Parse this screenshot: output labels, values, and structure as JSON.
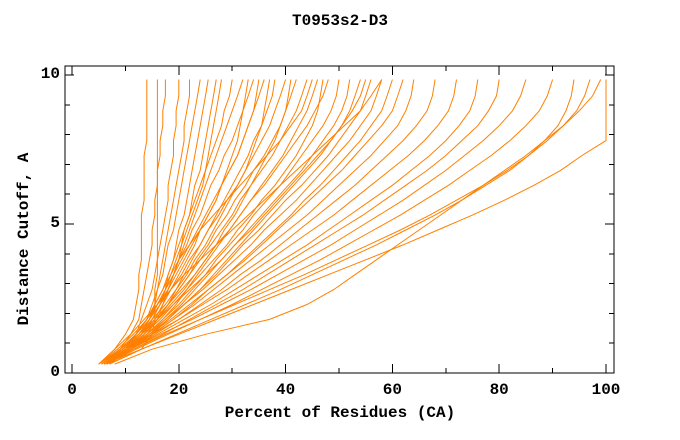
{
  "window": {
    "background": "#ffffff"
  },
  "chart_data": {
    "type": "line",
    "title": "T0953s2-D3",
    "xlabel": "Percent of Residues (CA)",
    "ylabel": "Distance Cutoff, A",
    "xlim": [
      0,
      100
    ],
    "ylim": [
      0,
      10
    ],
    "x_major_ticks": [
      0,
      20,
      40,
      60,
      80,
      100
    ],
    "x_minor_ticks": [
      10,
      30,
      50,
      70,
      90
    ],
    "y_major_ticks": [
      0,
      5,
      10
    ],
    "y_minor_ticks": [
      1,
      2,
      3,
      4,
      6,
      7,
      8,
      9
    ],
    "grid": false,
    "legend": "none",
    "line_color": "#ff8000",
    "axis_color": "#000000",
    "background": "#ffffff",
    "cutoffs": [
      0.3,
      0.8,
      1.3,
      1.8,
      2.3,
      2.8,
      3.3,
      3.8,
      4.3,
      4.8,
      5.3,
      5.8,
      6.3,
      6.8,
      7.3,
      7.8,
      8.3,
      8.8,
      9.3,
      9.85
    ],
    "series_note": "Each series is percent-of-residues (CA) at the shared distance cutoffs; one curve per predicted model (values estimated from plot).",
    "series": [
      [
        6,
        13,
        15,
        15.5,
        15.5,
        15.5,
        16,
        16,
        16,
        16,
        16,
        16,
        16,
        16,
        16,
        16,
        16,
        16,
        16,
        16
      ],
      [
        5,
        8,
        10,
        11.5,
        12,
        12.5,
        12.5,
        13,
        13,
        13,
        13,
        13.5,
        13.5,
        13.5,
        13.5,
        14,
        14,
        14,
        14,
        14
      ],
      [
        5.5,
        9,
        11,
        12.5,
        13,
        13.5,
        14,
        14.5,
        15,
        15,
        15.5,
        15.5,
        16,
        16,
        16.5,
        16.5,
        17,
        17,
        17.5,
        17.5
      ],
      [
        6,
        10,
        12,
        13,
        14,
        15,
        15.5,
        16,
        16.5,
        17,
        17.5,
        18,
        18,
        18.5,
        19,
        19,
        19.5,
        19.5,
        20,
        20
      ],
      [
        6.5,
        10,
        13,
        14.5,
        15.5,
        16,
        16.5,
        17,
        17.5,
        18,
        18.5,
        19,
        19.5,
        20,
        20.5,
        21,
        21,
        21.5,
        22,
        22
      ],
      [
        5.5,
        9,
        12,
        14,
        15,
        16,
        17,
        17.5,
        18,
        19,
        19.5,
        20,
        20.5,
        21,
        21.5,
        22,
        22.5,
        23,
        23.5,
        24
      ],
      [
        6,
        10.5,
        13.5,
        15,
        16.5,
        17.5,
        18,
        19,
        19.5,
        20,
        21,
        21.5,
        22,
        22.5,
        23,
        23.5,
        24,
        24.5,
        25,
        25.5
      ],
      [
        7,
        11,
        14,
        16,
        17,
        18,
        19,
        20,
        20.5,
        21,
        22,
        22.5,
        23,
        24,
        24.5,
        25,
        25.5,
        26,
        26.5,
        27
      ],
      [
        5.5,
        9.5,
        12.5,
        14.5,
        16,
        17.5,
        18.5,
        19.5,
        20.5,
        21.5,
        22.5,
        23.5,
        24.5,
        25,
        25.5,
        26,
        26.5,
        27,
        27.5,
        28
      ],
      [
        5,
        9,
        12,
        14,
        15.5,
        17,
        18,
        19,
        20,
        21,
        22,
        23,
        24,
        25,
        26,
        27,
        28,
        28.5,
        29.5,
        30
      ],
      [
        6,
        10,
        13,
        15,
        16.5,
        18,
        19,
        20,
        21,
        22,
        23,
        24,
        25,
        26,
        27,
        28,
        29,
        30,
        31,
        32
      ],
      [
        6,
        9.5,
        12,
        14,
        16,
        18,
        19.5,
        21,
        22.5,
        24,
        25.5,
        27,
        28,
        29,
        30,
        31,
        31.5,
        32,
        32.5,
        33
      ],
      [
        5.5,
        9.5,
        12.5,
        14.5,
        16,
        17.5,
        19,
        20,
        21.5,
        22.5,
        24,
        25,
        26,
        27.5,
        28.5,
        30,
        31,
        32,
        33,
        34
      ],
      [
        5,
        8.5,
        11.5,
        14,
        16,
        17.5,
        19,
        20.5,
        22,
        23.5,
        25,
        26.5,
        28,
        29.5,
        31,
        32,
        33,
        34,
        34.5,
        35
      ],
      [
        6,
        10,
        13,
        15.5,
        17,
        18.5,
        20,
        21.5,
        23,
        24,
        25.5,
        27,
        28,
        29.5,
        31,
        32,
        33,
        34,
        35,
        36
      ],
      [
        5.5,
        9,
        12.5,
        15,
        17.5,
        19.5,
        21.5,
        23,
        25,
        26.5,
        28,
        29.5,
        31,
        32.5,
        33.5,
        34.5,
        35.5,
        36,
        36.5,
        37
      ],
      [
        6.5,
        10.5,
        13.5,
        16,
        18,
        19.5,
        21,
        22.5,
        24,
        25.5,
        27,
        28.5,
        30,
        31.5,
        33,
        34,
        35.5,
        36.5,
        37.5,
        38
      ],
      [
        5.5,
        9,
        12,
        14.5,
        16.5,
        18.5,
        20.5,
        22,
        24,
        25.5,
        27.5,
        29,
        31,
        32.5,
        34,
        35.5,
        37,
        38,
        39,
        40
      ],
      [
        6,
        10,
        13,
        16,
        18.5,
        21,
        23,
        25,
        27,
        28.5,
        30.5,
        32,
        33.5,
        35,
        36.5,
        38,
        39,
        40,
        40.5,
        41
      ],
      [
        6,
        10,
        13.5,
        16,
        18,
        20,
        22,
        23.5,
        25.5,
        27,
        29,
        30.5,
        32.5,
        34,
        36,
        37.5,
        39,
        40,
        41,
        42
      ],
      [
        6,
        9.5,
        13,
        15.5,
        18,
        20,
        22,
        24,
        26,
        28,
        30,
        31.5,
        33.5,
        35.5,
        37.5,
        39,
        40.5,
        42,
        43,
        44
      ],
      [
        5.5,
        9,
        12,
        14,
        15.5,
        17,
        18.5,
        20,
        22,
        24,
        26.5,
        29,
        31.5,
        34,
        36.5,
        39,
        41,
        43,
        44,
        45
      ],
      [
        6.5,
        10.5,
        14,
        17,
        19.5,
        21.5,
        23.5,
        25.5,
        27.5,
        29.5,
        31.5,
        33.5,
        35.5,
        37.5,
        39.5,
        41,
        42.5,
        44,
        45,
        46
      ],
      [
        6.5,
        10,
        13.5,
        16.5,
        19,
        21.5,
        24,
        26.5,
        29,
        31,
        33.5,
        35.5,
        38,
        40,
        42,
        43.5,
        45,
        46,
        46.5,
        47
      ],
      [
        5.5,
        9,
        12.5,
        15.5,
        18,
        20.5,
        23,
        25,
        27,
        29.5,
        31.5,
        33.5,
        36,
        38,
        40,
        42,
        44,
        45.5,
        47,
        48
      ],
      [
        6,
        10,
        14,
        17,
        20,
        22.5,
        25,
        27,
        29.5,
        32,
        34,
        36.5,
        39,
        41,
        43,
        45,
        47,
        48.5,
        49.5,
        50
      ],
      [
        6,
        10.5,
        14.5,
        17.5,
        20.5,
        23,
        25.5,
        28,
        30.5,
        33,
        35.5,
        38,
        40.5,
        43,
        45,
        47,
        49,
        50.5,
        51.5,
        52
      ],
      [
        7,
        11,
        15,
        18,
        21,
        24,
        26.5,
        29,
        31.5,
        34,
        36.5,
        39,
        41.5,
        44,
        46.5,
        48.5,
        50.5,
        52,
        53,
        54
      ],
      [
        6,
        9.5,
        13,
        16,
        19,
        22,
        25,
        28,
        30.5,
        33.5,
        36,
        38.5,
        41,
        43.5,
        46,
        48.5,
        50.5,
        52.5,
        54,
        55
      ],
      [
        6.5,
        10.5,
        14.5,
        18,
        21,
        24,
        27,
        29.5,
        32,
        35,
        37.5,
        40,
        43,
        45.5,
        48,
        50,
        52,
        54,
        55,
        56
      ],
      [
        6,
        10,
        14,
        17.5,
        21,
        24.5,
        27.5,
        30.5,
        33.5,
        36,
        39,
        42,
        44.5,
        47,
        49.5,
        52,
        54,
        56,
        57,
        58
      ],
      [
        5,
        8,
        11,
        13.5,
        16,
        18.5,
        21,
        24,
        27,
        30,
        33,
        36,
        39,
        42,
        45,
        48,
        51,
        54,
        56,
        58
      ],
      [
        6.5,
        11,
        15,
        19,
        22.5,
        25.5,
        29,
        32,
        35,
        38,
        41,
        43.5,
        46.5,
        49,
        51.5,
        54,
        56,
        58,
        59,
        60
      ],
      [
        6,
        10,
        14.5,
        18.5,
        22,
        25.5,
        29,
        32.5,
        35.5,
        38.5,
        41.5,
        44.5,
        47.5,
        50.5,
        53,
        55.5,
        58,
        60,
        61,
        62
      ],
      [
        6,
        10.5,
        15,
        19,
        23,
        26.5,
        30,
        33.5,
        37,
        40.5,
        44,
        47,
        50,
        53,
        56,
        58.5,
        61,
        62.5,
        63.5,
        64
      ],
      [
        6.5,
        11,
        15.5,
        20,
        24,
        28,
        31.5,
        35.5,
        39,
        42.5,
        46,
        49.5,
        53,
        56,
        59,
        62,
        64.5,
        66.5,
        67.5,
        68
      ],
      [
        6,
        10,
        15,
        20,
        24.5,
        29,
        33,
        37,
        41,
        45,
        49,
        52.5,
        56,
        59.5,
        63,
        66,
        68.5,
        70.5,
        71.5,
        72
      ],
      [
        6,
        11,
        16,
        21,
        26,
        30.5,
        35,
        39.5,
        44,
        48,
        52,
        56,
        60,
        63.5,
        67,
        70,
        72.5,
        74.5,
        75.5,
        76
      ],
      [
        6.5,
        11.5,
        17,
        22,
        27,
        32,
        36.5,
        41,
        45.5,
        50,
        54.5,
        58.5,
        62.5,
        66.5,
        70,
        73,
        76,
        78,
        79.5,
        80
      ],
      [
        6,
        11,
        16.5,
        22.5,
        28,
        33.5,
        38.5,
        43.5,
        48.5,
        53,
        57.5,
        62,
        66,
        70,
        73.5,
        77,
        80,
        82.5,
        84,
        85
      ],
      [
        6.5,
        12,
        18,
        24,
        30,
        35.5,
        41,
        46.5,
        51.5,
        56.5,
        61.5,
        66,
        70.5,
        74.5,
        78.5,
        82,
        85,
        87.5,
        89,
        90
      ],
      [
        7,
        13,
        19.5,
        26,
        32.5,
        39,
        45,
        51,
        57,
        62.5,
        68,
        73,
        77.5,
        82,
        85.5,
        88.5,
        91,
        92.5,
        93.5,
        94
      ],
      [
        6,
        11.5,
        17.5,
        24,
        30.5,
        37,
        43.5,
        49.5,
        55.5,
        61.5,
        67,
        72,
        77,
        81.5,
        85.5,
        89,
        92,
        94.5,
        96,
        97
      ],
      [
        7,
        13,
        20,
        27,
        34,
        41,
        48,
        55,
        62,
        68.5,
        75,
        81,
        86.5,
        91.5,
        95.5,
        100,
        100,
        100,
        100,
        100
      ],
      [
        8,
        15,
        25,
        37,
        44,
        49,
        53,
        57,
        61,
        65,
        69,
        73,
        77,
        81,
        85,
        88.5,
        92,
        95,
        97.5,
        99
      ]
    ]
  }
}
